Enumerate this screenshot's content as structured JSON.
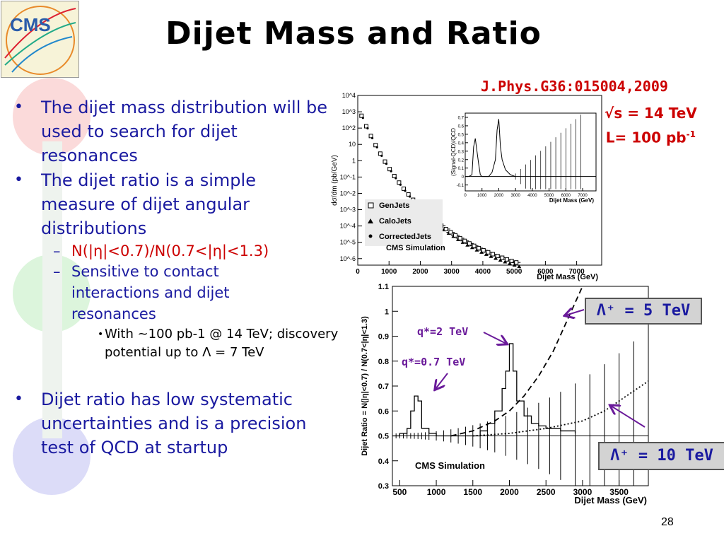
{
  "slide": {
    "title": "Dijet Mass and Ratio",
    "page_number": "28",
    "logo_text": "CMS",
    "bullets": [
      {
        "text": "The dijet mass distribution will be used to search for dijet resonances"
      },
      {
        "text": "The dijet ratio is a simple measure of dijet angular distributions"
      },
      {
        "text": "Dijet ratio has low systematic uncertainties and is a precision test of QCD at startup"
      }
    ],
    "sub_bullets": [
      {
        "text": "N(|η|<0.7)/N(0.7<|η|<1.3)"
      },
      {
        "text": "Sensitive to contact interactions and dijet resonances"
      }
    ],
    "subsub_bullet": "With  ~100 pb-1 @ 14 TeV; discovery potential up to Λ = 7 TeV",
    "reference": "J.Phys.G36:015004,2009",
    "energy_label": "√s = 14 TeV",
    "lumi_label": "L= 100 pb",
    "lumi_exp": "-1",
    "lambda5": "Λ⁺ = 5 TeV",
    "lambda10": "Λ⁺ = 10 TeV",
    "q2": "q*=2 TeV",
    "q07": "q*=0.7 TeV"
  },
  "chart_data": [
    {
      "type": "scatter",
      "xlabel": "Dijet Mass (GeV)",
      "ylabel": "dσ/dm (pb/GeV)",
      "scale_y": "log",
      "xlim": [
        0,
        7800
      ],
      "x_ticks": [
        "0",
        "1000",
        "2000",
        "3000",
        "4000",
        "5000",
        "6000",
        "7000"
      ],
      "y_ticks": [
        "10^4",
        "10^3",
        "10^2",
        "10",
        "1",
        "10^-1",
        "10^-2",
        "10^-3",
        "10^-4",
        "10^-5",
        "10^-6"
      ],
      "legend": [
        "GenJets",
        "CaloJets",
        "CorrectedJets"
      ],
      "annotation": "CMS Simulation",
      "inset": {
        "type": "line",
        "xlabel": "Dijet Mass (GeV)",
        "ylabel": "(Signal-QCD)/QCD",
        "x_ticks": [
          "0",
          "1000",
          "2000",
          "3000",
          "4000",
          "5000",
          "6000",
          "7000"
        ],
        "y_ticks": [
          "0.7",
          "0.6",
          "0.5",
          "0.4",
          "0.3",
          "0.2",
          "0.1",
          "0",
          "-0.1"
        ]
      }
    },
    {
      "type": "line",
      "xlabel": "Dijet Mass (GeV)",
      "ylabel": "Dijet Ratio = N(|η|<0.7) / N(0.7<|η|<1.3)",
      "xlim": [
        400,
        3900
      ],
      "ylim": [
        0.3,
        1.1
      ],
      "x_ticks": [
        "500",
        "1000",
        "1500",
        "2000",
        "2500",
        "3000",
        "3500"
      ],
      "y_ticks": [
        "1.1",
        "1",
        "0.9",
        "0.8",
        "0.7",
        "0.6",
        "0.5",
        "0.4",
        "0.3"
      ],
      "annotation": "CMS Simulation",
      "series": [
        {
          "name": "q*=0.7 TeV",
          "x": [
            400,
            500,
            600,
            650,
            700,
            750,
            800,
            900,
            1000,
            1100,
            1200,
            1300,
            1400,
            1500
          ],
          "y": [
            0.5,
            0.51,
            0.53,
            0.6,
            0.66,
            0.64,
            0.53,
            0.51,
            0.5,
            0.5,
            0.5,
            0.5,
            0.5,
            0.5
          ]
        },
        {
          "name": "q*=2 TeV",
          "x": [
            1500,
            1600,
            1700,
            1800,
            1900,
            1950,
            2000,
            2050,
            2100,
            2200,
            2300,
            2400,
            2500,
            2700,
            2900
          ],
          "y": [
            0.5,
            0.52,
            0.55,
            0.6,
            0.69,
            0.76,
            0.87,
            0.76,
            0.64,
            0.58,
            0.55,
            0.54,
            0.53,
            0.52,
            0.51
          ]
        },
        {
          "name": "Λ⁺ = 5 TeV",
          "x": [
            1200,
            1500,
            1800,
            2000,
            2200,
            2400,
            2600,
            2800,
            3000
          ],
          "y": [
            0.5,
            0.52,
            0.56,
            0.6,
            0.66,
            0.74,
            0.84,
            0.97,
            1.1
          ]
        },
        {
          "name": "Λ⁺ = 10 TeV",
          "x": [
            1500,
            2000,
            2500,
            3000,
            3300,
            3600,
            3900
          ],
          "y": [
            0.5,
            0.51,
            0.53,
            0.56,
            0.6,
            0.66,
            0.72
          ]
        }
      ]
    }
  ]
}
